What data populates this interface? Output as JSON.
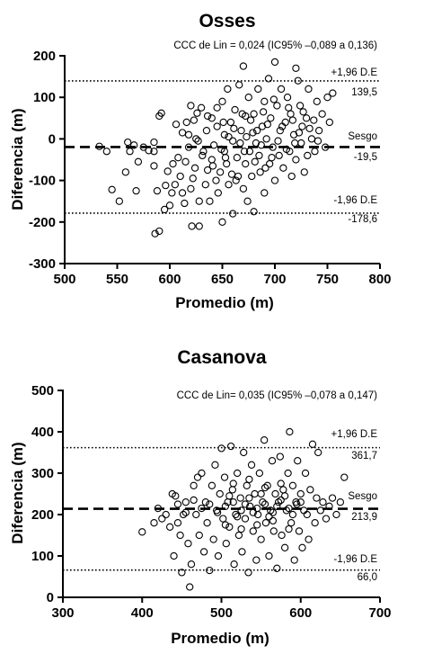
{
  "chart_data": [
    {
      "type": "scatter",
      "title": "Osses",
      "xlabel": "Promedio (m)",
      "ylabel": "Diferencia (m)",
      "xlim": [
        500,
        800
      ],
      "ylim": [
        -300,
        200
      ],
      "xticks": [
        500,
        550,
        600,
        650,
        700,
        750,
        800
      ],
      "yticks": [
        -300,
        -200,
        -100,
        0,
        100,
        200
      ],
      "ccc_text": "CCC de Lin = 0,024 (IC95% –0,089 a 0,136)",
      "bias": {
        "label": "Sesgo",
        "value": -19.5,
        "value_text": "-19,5"
      },
      "upper_loa": {
        "label": "+1,96 D.E",
        "value": 139.5,
        "value_text": "139,5"
      },
      "lower_loa": {
        "label": "-1,96 D.E",
        "value": -178.6,
        "value_text": "-178,6"
      },
      "points": [
        [
          533,
          -18
        ],
        [
          540,
          -30
        ],
        [
          545,
          -122
        ],
        [
          552,
          -150
        ],
        [
          558,
          -80
        ],
        [
          560,
          -8
        ],
        [
          562,
          -30
        ],
        [
          566,
          -15
        ],
        [
          568,
          -125
        ],
        [
          570,
          -55
        ],
        [
          575,
          -20
        ],
        [
          580,
          -28
        ],
        [
          585,
          -30
        ],
        [
          585,
          -65
        ],
        [
          586,
          -228
        ],
        [
          588,
          -125
        ],
        [
          590,
          -222
        ],
        [
          590,
          55
        ],
        [
          592,
          62
        ],
        [
          595,
          -170
        ],
        [
          596,
          -112
        ],
        [
          598,
          -78
        ],
        [
          585,
          -8
        ],
        [
          600,
          -160
        ],
        [
          602,
          -130
        ],
        [
          603,
          -60
        ],
        [
          605,
          -110
        ],
        [
          606,
          35
        ],
        [
          608,
          -45
        ],
        [
          610,
          -90
        ],
        [
          612,
          -130
        ],
        [
          614,
          -155
        ],
        [
          615,
          -55
        ],
        [
          616,
          40
        ],
        [
          618,
          10
        ],
        [
          620,
          -120
        ],
        [
          620,
          80
        ],
        [
          621,
          -210
        ],
        [
          622,
          -95
        ],
        [
          624,
          -70
        ],
        [
          625,
          0
        ],
        [
          626,
          62
        ],
        [
          628,
          -210
        ],
        [
          628,
          -150
        ],
        [
          630,
          75
        ],
        [
          632,
          -30
        ],
        [
          634,
          -110
        ],
        [
          635,
          20
        ],
        [
          636,
          -75
        ],
        [
          638,
          -150
        ],
        [
          640,
          -50
        ],
        [
          640,
          50
        ],
        [
          642,
          -15
        ],
        [
          644,
          -100
        ],
        [
          645,
          30
        ],
        [
          646,
          -130
        ],
        [
          648,
          -80
        ],
        [
          650,
          -200
        ],
        [
          650,
          90
        ],
        [
          652,
          -30
        ],
        [
          652,
          10
        ],
        [
          654,
          -60
        ],
        [
          655,
          120
        ],
        [
          656,
          -110
        ],
        [
          658,
          40
        ],
        [
          660,
          -180
        ],
        [
          660,
          -5
        ],
        [
          662,
          70
        ],
        [
          664,
          -45
        ],
        [
          665,
          -90
        ],
        [
          666,
          130
        ],
        [
          668,
          20
        ],
        [
          670,
          -120
        ],
        [
          670,
          175
        ],
        [
          672,
          -60
        ],
        [
          672,
          55
        ],
        [
          674,
          -150
        ],
        [
          675,
          100
        ],
        [
          676,
          -30
        ],
        [
          678,
          -90
        ],
        [
          679,
          15
        ],
        [
          680,
          -175
        ],
        [
          680,
          60
        ],
        [
          682,
          -10
        ],
        [
          684,
          120
        ],
        [
          685,
          -40
        ],
        [
          686,
          -80
        ],
        [
          688,
          30
        ],
        [
          690,
          -130
        ],
        [
          690,
          90
        ],
        [
          692,
          0
        ],
        [
          694,
          145
        ],
        [
          695,
          -60
        ],
        [
          696,
          50
        ],
        [
          698,
          -20
        ],
        [
          700,
          185
        ],
        [
          700,
          -100
        ],
        [
          702,
          80
        ],
        [
          704,
          -40
        ],
        [
          705,
          20
        ],
        [
          706,
          120
        ],
        [
          708,
          -70
        ],
        [
          710,
          40
        ],
        [
          712,
          100
        ],
        [
          714,
          -30
        ],
        [
          715,
          60
        ],
        [
          716,
          -90
        ],
        [
          718,
          10
        ],
        [
          720,
          170
        ],
        [
          720,
          -50
        ],
        [
          722,
          140
        ],
        [
          724,
          80
        ],
        [
          725,
          -10
        ],
        [
          726,
          30
        ],
        [
          728,
          -80
        ],
        [
          730,
          50
        ],
        [
          732,
          120
        ],
        [
          735,
          0
        ],
        [
          738,
          -30
        ],
        [
          740,
          90
        ],
        [
          742,
          20
        ],
        [
          745,
          60
        ],
        [
          748,
          -20
        ],
        [
          750,
          100
        ],
        [
          752,
          40
        ],
        [
          755,
          110
        ],
        [
          612,
          15
        ],
        [
          618,
          -20
        ],
        [
          623,
          45
        ],
        [
          627,
          -5
        ],
        [
          631,
          -40
        ],
        [
          636,
          55
        ],
        [
          641,
          -65
        ],
        [
          645,
          75
        ],
        [
          649,
          -25
        ],
        [
          651,
          40
        ],
        [
          653,
          -45
        ],
        [
          656,
          5
        ],
        [
          659,
          -85
        ],
        [
          661,
          25
        ],
        [
          663,
          -100
        ],
        [
          667,
          -10
        ],
        [
          669,
          60
        ],
        [
          671,
          -30
        ],
        [
          673,
          5
        ],
        [
          677,
          45
        ],
        [
          681,
          -55
        ],
        [
          683,
          20
        ],
        [
          687,
          -15
        ],
        [
          689,
          65
        ],
        [
          691,
          -70
        ],
        [
          693,
          35
        ],
        [
          697,
          -45
        ],
        [
          699,
          95
        ],
        [
          703,
          -5
        ],
        [
          707,
          30
        ],
        [
          711,
          -25
        ],
        [
          713,
          75
        ],
        [
          717,
          45
        ],
        [
          719,
          -10
        ],
        [
          723,
          15
        ],
        [
          727,
          65
        ],
        [
          731,
          -40
        ],
        [
          733,
          25
        ],
        [
          737,
          45
        ],
        [
          741,
          -5
        ]
      ]
    },
    {
      "type": "scatter",
      "title": "Casanova",
      "xlabel": "Promedio (m)",
      "ylabel": "Diferencia (m)",
      "xlim": [
        300,
        700
      ],
      "ylim": [
        0,
        500
      ],
      "xticks": [
        300,
        400,
        500,
        600,
        700
      ],
      "yticks": [
        0,
        100,
        200,
        300,
        400,
        500
      ],
      "ccc_text": "CCC de Lin= 0,035 (IC95% –0,078 a 0,147)",
      "bias": {
        "label": "Sesgo",
        "value": 213.9,
        "value_text": "213,9"
      },
      "upper_loa": {
        "label": "+1,96 D.E",
        "value": 361.7,
        "value_text": "361,7"
      },
      "lower_loa": {
        "label": "-1,96 D.E",
        "value": 66.0,
        "value_text": "66,0"
      },
      "points": [
        [
          400,
          158
        ],
        [
          415,
          180
        ],
        [
          420,
          215
        ],
        [
          425,
          190
        ],
        [
          430,
          200
        ],
        [
          435,
          170
        ],
        [
          438,
          250
        ],
        [
          440,
          100
        ],
        [
          442,
          245
        ],
        [
          445,
          180
        ],
        [
          448,
          150
        ],
        [
          450,
          60
        ],
        [
          452,
          200
        ],
        [
          455,
          230
        ],
        [
          458,
          130
        ],
        [
          460,
          25
        ],
        [
          462,
          80
        ],
        [
          465,
          270
        ],
        [
          468,
          200
        ],
        [
          470,
          290
        ],
        [
          472,
          150
        ],
        [
          475,
          300
        ],
        [
          478,
          110
        ],
        [
          480,
          230
        ],
        [
          482,
          180
        ],
        [
          485,
          65
        ],
        [
          488,
          270
        ],
        [
          490,
          140
        ],
        [
          492,
          320
        ],
        [
          494,
          210
        ],
        [
          496,
          100
        ],
        [
          498,
          250
        ],
        [
          500,
          360
        ],
        [
          502,
          190
        ],
        [
          504,
          290
        ],
        [
          506,
          130
        ],
        [
          508,
          230
        ],
        [
          510,
          170
        ],
        [
          512,
          365
        ],
        [
          514,
          260
        ],
        [
          516,
          80
        ],
        [
          518,
          200
        ],
        [
          520,
          300
        ],
        [
          522,
          150
        ],
        [
          524,
          240
        ],
        [
          526,
          110
        ],
        [
          528,
          350
        ],
        [
          530,
          190
        ],
        [
          532,
          270
        ],
        [
          534,
          60
        ],
        [
          536,
          220
        ],
        [
          538,
          320
        ],
        [
          540,
          160
        ],
        [
          542,
          250
        ],
        [
          544,
          90
        ],
        [
          546,
          200
        ],
        [
          548,
          300
        ],
        [
          550,
          140
        ],
        [
          552,
          230
        ],
        [
          554,
          380
        ],
        [
          556,
          180
        ],
        [
          558,
          270
        ],
        [
          560,
          100
        ],
        [
          562,
          210
        ],
        [
          564,
          330
        ],
        [
          566,
          160
        ],
        [
          568,
          250
        ],
        [
          570,
          70
        ],
        [
          572,
          230
        ],
        [
          574,
          340
        ],
        [
          576,
          150
        ],
        [
          578,
          260
        ],
        [
          580,
          120
        ],
        [
          582,
          210
        ],
        [
          584,
          300
        ],
        [
          586,
          400
        ],
        [
          588,
          180
        ],
        [
          590,
          270
        ],
        [
          592,
          90
        ],
        [
          594,
          230
        ],
        [
          596,
          330
        ],
        [
          598,
          160
        ],
        [
          600,
          250
        ],
        [
          602,
          120
        ],
        [
          604,
          210
        ],
        [
          606,
          300
        ],
        [
          608,
          200
        ],
        [
          610,
          140
        ],
        [
          612,
          260
        ],
        [
          615,
          370
        ],
        [
          618,
          180
        ],
        [
          620,
          240
        ],
        [
          622,
          350
        ],
        [
          625,
          210
        ],
        [
          628,
          230
        ],
        [
          632,
          190
        ],
        [
          636,
          220
        ],
        [
          640,
          240
        ],
        [
          645,
          200
        ],
        [
          650,
          230
        ],
        [
          655,
          290
        ],
        [
          505,
          220
        ],
        [
          515,
          230
        ],
        [
          525,
          210
        ],
        [
          535,
          240
        ],
        [
          545,
          215
        ],
        [
          555,
          225
        ],
        [
          565,
          205
        ],
        [
          575,
          235
        ],
        [
          585,
          215
        ],
        [
          595,
          225
        ],
        [
          510,
          245
        ],
        [
          520,
          195
        ],
        [
          530,
          225
        ],
        [
          540,
          205
        ],
        [
          550,
          250
        ],
        [
          560,
          195
        ],
        [
          570,
          220
        ],
        [
          580,
          245
        ],
        [
          590,
          200
        ],
        [
          600,
          230
        ],
        [
          545,
          175
        ],
        [
          555,
          265
        ],
        [
          565,
          185
        ],
        [
          575,
          275
        ],
        [
          585,
          165
        ],
        [
          535,
          285
        ],
        [
          525,
          165
        ],
        [
          515,
          275
        ],
        [
          505,
          175
        ],
        [
          495,
          205
        ],
        [
          485,
          225
        ],
        [
          475,
          215
        ],
        [
          465,
          235
        ],
        [
          455,
          205
        ],
        [
          445,
          225
        ]
      ]
    }
  ]
}
